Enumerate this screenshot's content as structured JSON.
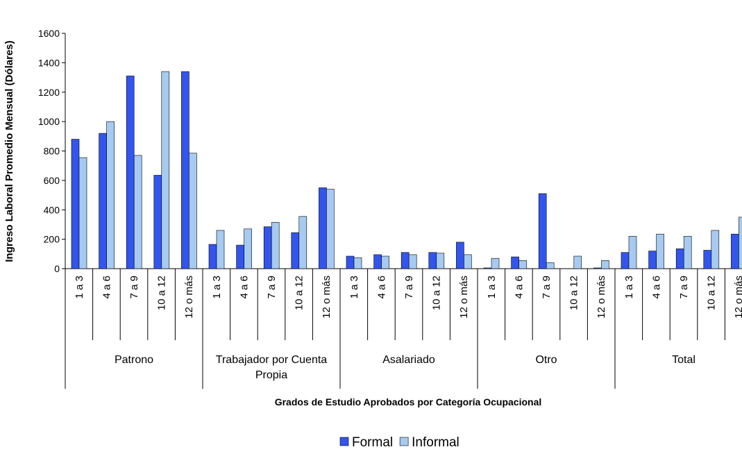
{
  "chart_data": {
    "type": "bar",
    "y_label": "Ingreso Laboral Promedio Mensual (Dólares)",
    "x_label": "Grados de Estudio Aprobados por Categoría Ocupacional",
    "groups": [
      {
        "name": "Patrono",
        "categories": [
          "1 a 3",
          "4 a 6",
          "7 a 9",
          "10 a 12",
          "12 o más"
        ]
      },
      {
        "name": "Trabajador por Cuenta Propia",
        "categories": [
          "1 a 3",
          "4 a 6",
          "7 a 9",
          "10 a 12",
          "12 o más"
        ]
      },
      {
        "name": "Asalariado",
        "categories": [
          "1 a 3",
          "4 a 6",
          "7 a 9",
          "10 a 12",
          "12 o más"
        ]
      },
      {
        "name": "Otro",
        "categories": [
          "1 a 3",
          "4 a 6",
          "7 a 9",
          "10 a 12",
          "12 o más"
        ]
      },
      {
        "name": "Total",
        "categories": [
          "1 a 3",
          "4 a 6",
          "7 a 9",
          "10 a 12",
          "12 o más"
        ]
      }
    ],
    "series": [
      {
        "name": "Formal",
        "color": "#3355ee",
        "values": [
          880,
          920,
          1310,
          635,
          1340,
          165,
          160,
          285,
          245,
          550,
          85,
          95,
          110,
          110,
          180,
          5,
          80,
          510,
          null,
          5,
          110,
          120,
          135,
          125,
          235
        ]
      },
      {
        "name": "Informal",
        "color": "#a6caf0",
        "values": [
          755,
          1000,
          770,
          1340,
          785,
          260,
          270,
          315,
          355,
          540,
          75,
          85,
          95,
          105,
          95,
          70,
          55,
          40,
          85,
          55,
          220,
          235,
          220,
          260,
          350
        ]
      }
    ],
    "ylim": [
      0,
      1600
    ],
    "yticks": [
      0,
      200,
      400,
      600,
      800,
      1000,
      1200,
      1400,
      1600
    ],
    "legend": "bottom"
  }
}
